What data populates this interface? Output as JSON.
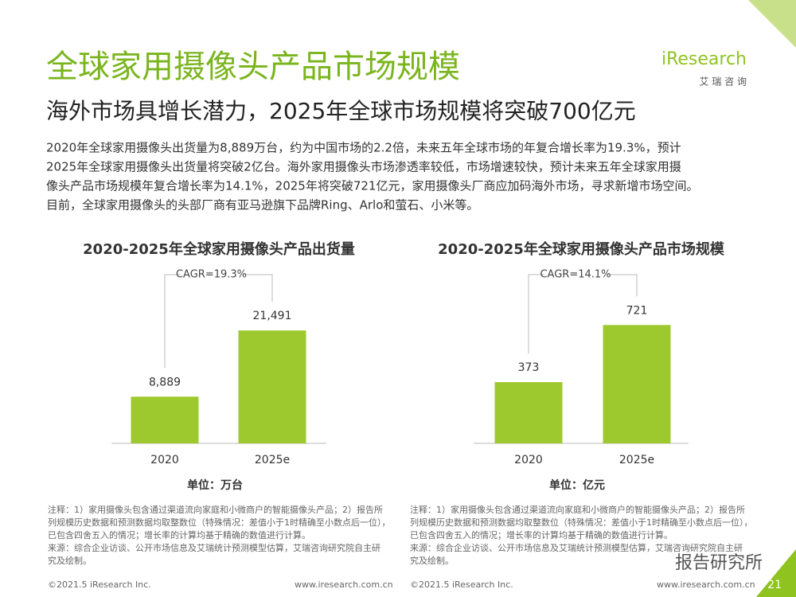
{
  "header": {
    "title": "全球家用摄像头产品市场规模",
    "subtitle": "海外市场具增长潜力，2025年全球市场规模将突破700亿元",
    "logo": "iResearch",
    "logo_sub": "艾 瑞 咨 询"
  },
  "body": [
    "2020年全球家用摄像头出货量为8,889万台，约为中国市场的2.2倍，未来五年全球市场的年复合增长率为19.3%，预计",
    "2025年全球家用摄像头出货量将突破2亿台。海外家用摄像头市场渗透率较低，市场增速较快，预计未来五年全球家用摄",
    "像头产品市场规模年复合增长率为14.1%，2025年将突破721亿元，家用摄像头厂商应加码海外市场，寻求新增市场空间。",
    "目前，全球家用摄像头的头部厂商有亚马逊旗下品牌Ring、Arlo和萤石、小米等。"
  ],
  "chart_data": [
    {
      "type": "bar",
      "title": "2020-2025年全球家用摄像头产品出货量",
      "categories": [
        "2020",
        "2025e"
      ],
      "values": [
        8889,
        21491
      ],
      "value_labels": [
        "8,889",
        "21,491"
      ],
      "color": "#9dc92e",
      "ylim": [
        0,
        25000
      ],
      "annotation": "CAGR=19.3%",
      "unit": "单位：万台"
    },
    {
      "type": "bar",
      "title": "2020-2025年全球家用摄像头产品市场规模",
      "categories": [
        "2020",
        "2025e"
      ],
      "values": [
        373,
        721
      ],
      "color": "#9dc92e",
      "ylim": [
        0,
        800
      ],
      "annotation": "CAGR=14.1%",
      "unit": "单位：亿元"
    }
  ],
  "notes": [
    [
      "注释：1）家用摄像头包含通过渠道流向家庭和小微商户的智能摄像头产品；2）报告所",
      "列规模历史数据和预测数据均取整数位（特殊情况：差值小于1时精确至小数点后一位），",
      "已包含四舍五入的情况；增长率的计算均基于精确的数值进行计算。",
      "来源：综合企业访谈、公开市场信息及艾瑞统计预测模型估算，艾瑞咨询研究院自主研",
      "究及绘制。"
    ],
    [
      "注释：1）家用摄像头包含通过渠道流向家庭和小微商户的智能摄像头产品；2）报告所",
      "列规模历史数据和预测数据均取整数位（特殊情况：差值小于1时精确至小数点后一位），",
      "已包含四舍五入的情况；增长率的计算均基于精确的数值进行计算。",
      "来源：综合企业访谈、公开市场信息及艾瑞统计预测模型估算，艾瑞咨询研究院自主研",
      "究及绘制。"
    ]
  ],
  "footer": {
    "copyright": "©2021.5 iResearch Inc.",
    "url": "www.iresearch.com.cn",
    "page": "21"
  },
  "watermark": "报告研究所"
}
